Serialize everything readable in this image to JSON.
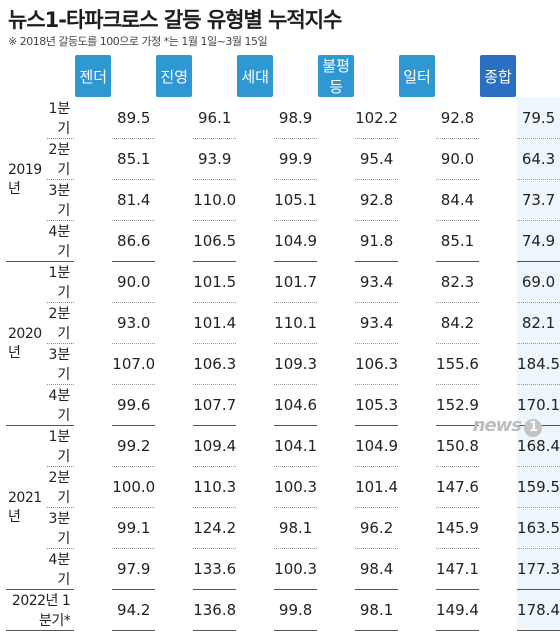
{
  "title": "뉴스1-타파크로스 갈등 유형별 누적지수",
  "subtitle": "※ 2018년 갈등도를 100으로 가정 *는 1월 1일~3월 15일",
  "logo_text": "news",
  "logo_num": "1",
  "chart_data": {
    "type": "table",
    "columns": [
      "젠더",
      "진영",
      "세대",
      "불평등",
      "일터",
      "종합"
    ],
    "rows": [
      {
        "year": "2019년",
        "quarter": "1분기",
        "values": [
          "89.5",
          "96.1",
          "98.9",
          "102.2",
          "92.8",
          "79.5"
        ]
      },
      {
        "year": "",
        "quarter": "2분기",
        "values": [
          "85.1",
          "93.9",
          "99.9",
          "95.4",
          "90.0",
          "64.3"
        ]
      },
      {
        "year": "",
        "quarter": "3분기",
        "values": [
          "81.4",
          "110.0",
          "105.1",
          "92.8",
          "84.4",
          "73.7"
        ]
      },
      {
        "year": "",
        "quarter": "4분기",
        "values": [
          "86.6",
          "106.5",
          "104.9",
          "91.8",
          "85.1",
          "74.9"
        ]
      },
      {
        "year": "2020년",
        "quarter": "1분기",
        "values": [
          "90.0",
          "101.5",
          "101.7",
          "93.4",
          "82.3",
          "69.0"
        ]
      },
      {
        "year": "",
        "quarter": "2분기",
        "values": [
          "93.0",
          "101.4",
          "110.1",
          "93.4",
          "84.2",
          "82.1"
        ]
      },
      {
        "year": "",
        "quarter": "3분기",
        "values": [
          "107.0",
          "106.3",
          "109.3",
          "106.3",
          "155.6",
          "184.5"
        ]
      },
      {
        "year": "",
        "quarter": "4분기",
        "values": [
          "99.6",
          "107.7",
          "104.6",
          "105.3",
          "152.9",
          "170.1"
        ]
      },
      {
        "year": "2021년",
        "quarter": "1분기",
        "values": [
          "99.2",
          "109.4",
          "104.1",
          "104.9",
          "150.8",
          "168.4"
        ]
      },
      {
        "year": "",
        "quarter": "2분기",
        "values": [
          "100.0",
          "110.3",
          "100.3",
          "101.4",
          "147.6",
          "159.5"
        ]
      },
      {
        "year": "",
        "quarter": "3분기",
        "values": [
          "99.1",
          "124.2",
          "98.1",
          "96.2",
          "145.9",
          "163.5"
        ]
      },
      {
        "year": "",
        "quarter": "4분기",
        "values": [
          "97.9",
          "133.6",
          "100.3",
          "98.4",
          "147.1",
          "177.3"
        ]
      },
      {
        "year": "2022년",
        "quarter": "1분기*",
        "values": [
          "94.2",
          "136.8",
          "99.8",
          "98.1",
          "149.4",
          "178.4"
        ]
      }
    ],
    "header_color": "#2f97d2",
    "total_header_color": "#2a6fc0",
    "total_column_bg": "#eef6fc"
  }
}
